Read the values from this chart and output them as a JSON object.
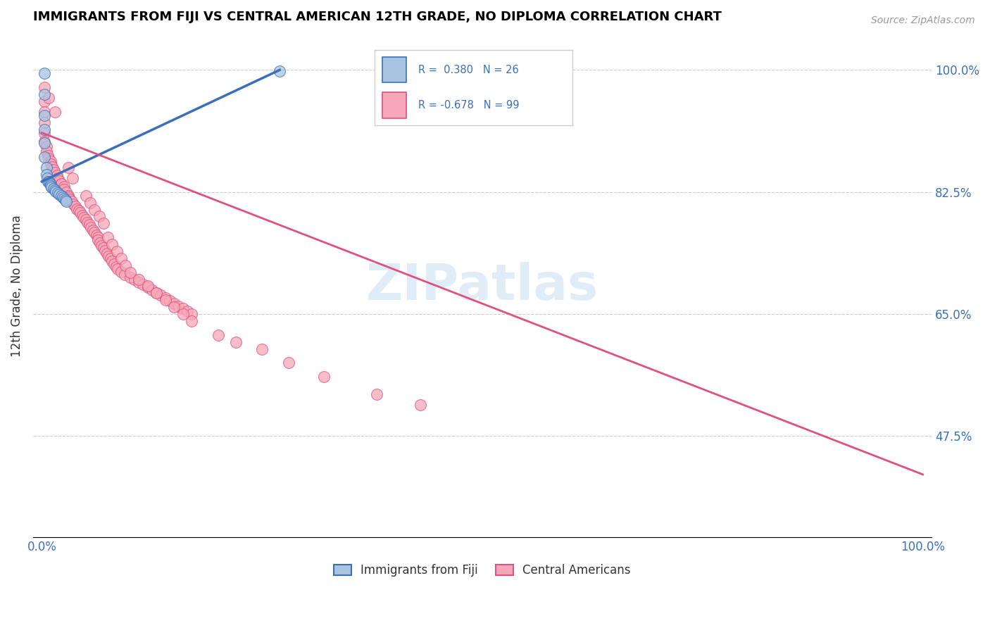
{
  "title": "IMMIGRANTS FROM FIJI VS CENTRAL AMERICAN 12TH GRADE, NO DIPLOMA CORRELATION CHART",
  "source_text": "Source: ZipAtlas.com",
  "ylabel": "12th Grade, No Diploma",
  "x_tick_labels": [
    "0.0%",
    "100.0%"
  ],
  "y_tick_labels": [
    "100.0%",
    "82.5%",
    "65.0%",
    "47.5%"
  ],
  "y_tick_positions": [
    1.0,
    0.825,
    0.65,
    0.475
  ],
  "fiji_R": 0.38,
  "fiji_N": 26,
  "central_R": -0.678,
  "central_N": 99,
  "fiji_color": "#a8c4e0",
  "fiji_line_color": "#3a6fba",
  "central_color": "#f5a8b8",
  "central_line_color": "#e05080",
  "watermark": "ZIPatlas",
  "xlim": [
    0.0,
    1.0
  ],
  "ylim": [
    0.33,
    1.05
  ],
  "fiji_line_x": [
    0.0,
    0.27
  ],
  "fiji_line_y": [
    0.84,
    1.0
  ],
  "central_line_x": [
    0.0,
    1.0
  ],
  "central_line_y": [
    0.91,
    0.42
  ],
  "fiji_points": [
    [
      0.003,
      0.995
    ],
    [
      0.003,
      0.965
    ],
    [
      0.003,
      0.935
    ],
    [
      0.003,
      0.915
    ],
    [
      0.003,
      0.895
    ],
    [
      0.003,
      0.875
    ],
    [
      0.005,
      0.86
    ],
    [
      0.005,
      0.85
    ],
    [
      0.006,
      0.845
    ],
    [
      0.007,
      0.84
    ],
    [
      0.008,
      0.84
    ],
    [
      0.009,
      0.838
    ],
    [
      0.01,
      0.836
    ],
    [
      0.01,
      0.834
    ],
    [
      0.011,
      0.832
    ],
    [
      0.013,
      0.83
    ],
    [
      0.015,
      0.828
    ],
    [
      0.016,
      0.826
    ],
    [
      0.018,
      0.824
    ],
    [
      0.02,
      0.822
    ],
    [
      0.022,
      0.82
    ],
    [
      0.024,
      0.818
    ],
    [
      0.025,
      0.816
    ],
    [
      0.027,
      0.814
    ],
    [
      0.028,
      0.812
    ],
    [
      0.27,
      0.998
    ]
  ],
  "central_points": [
    [
      0.003,
      0.975
    ],
    [
      0.003,
      0.955
    ],
    [
      0.003,
      0.94
    ],
    [
      0.003,
      0.925
    ],
    [
      0.003,
      0.91
    ],
    [
      0.003,
      0.897
    ],
    [
      0.005,
      0.89
    ],
    [
      0.005,
      0.883
    ],
    [
      0.007,
      0.877
    ],
    [
      0.008,
      0.873
    ],
    [
      0.01,
      0.869
    ],
    [
      0.01,
      0.865
    ],
    [
      0.012,
      0.861
    ],
    [
      0.013,
      0.857
    ],
    [
      0.015,
      0.853
    ],
    [
      0.017,
      0.849
    ],
    [
      0.018,
      0.845
    ],
    [
      0.02,
      0.841
    ],
    [
      0.022,
      0.837
    ],
    [
      0.022,
      0.837
    ],
    [
      0.025,
      0.833
    ],
    [
      0.025,
      0.829
    ],
    [
      0.028,
      0.825
    ],
    [
      0.03,
      0.82
    ],
    [
      0.03,
      0.818
    ],
    [
      0.032,
      0.815
    ],
    [
      0.034,
      0.812
    ],
    [
      0.036,
      0.808
    ],
    [
      0.038,
      0.805
    ],
    [
      0.04,
      0.801
    ],
    [
      0.042,
      0.798
    ],
    [
      0.044,
      0.795
    ],
    [
      0.046,
      0.791
    ],
    [
      0.048,
      0.788
    ],
    [
      0.05,
      0.785
    ],
    [
      0.052,
      0.781
    ],
    [
      0.054,
      0.778
    ],
    [
      0.056,
      0.774
    ],
    [
      0.058,
      0.77
    ],
    [
      0.06,
      0.767
    ],
    [
      0.062,
      0.763
    ],
    [
      0.064,
      0.76
    ],
    [
      0.064,
      0.756
    ],
    [
      0.066,
      0.752
    ],
    [
      0.068,
      0.748
    ],
    [
      0.07,
      0.745
    ],
    [
      0.072,
      0.741
    ],
    [
      0.074,
      0.737
    ],
    [
      0.076,
      0.733
    ],
    [
      0.078,
      0.73
    ],
    [
      0.08,
      0.726
    ],
    [
      0.082,
      0.722
    ],
    [
      0.084,
      0.718
    ],
    [
      0.086,
      0.715
    ],
    [
      0.09,
      0.711
    ],
    [
      0.094,
      0.707
    ],
    [
      0.1,
      0.703
    ],
    [
      0.105,
      0.7
    ],
    [
      0.11,
      0.696
    ],
    [
      0.115,
      0.692
    ],
    [
      0.12,
      0.688
    ],
    [
      0.125,
      0.684
    ],
    [
      0.13,
      0.68
    ],
    [
      0.135,
      0.677
    ],
    [
      0.14,
      0.673
    ],
    [
      0.145,
      0.669
    ],
    [
      0.15,
      0.665
    ],
    [
      0.155,
      0.661
    ],
    [
      0.16,
      0.658
    ],
    [
      0.165,
      0.654
    ],
    [
      0.17,
      0.65
    ],
    [
      0.008,
      0.96
    ],
    [
      0.015,
      0.94
    ],
    [
      0.03,
      0.86
    ],
    [
      0.035,
      0.845
    ],
    [
      0.05,
      0.82
    ],
    [
      0.055,
      0.81
    ],
    [
      0.06,
      0.8
    ],
    [
      0.065,
      0.79
    ],
    [
      0.07,
      0.78
    ],
    [
      0.075,
      0.76
    ],
    [
      0.08,
      0.75
    ],
    [
      0.085,
      0.74
    ],
    [
      0.09,
      0.73
    ],
    [
      0.095,
      0.72
    ],
    [
      0.1,
      0.71
    ],
    [
      0.11,
      0.7
    ],
    [
      0.12,
      0.69
    ],
    [
      0.13,
      0.68
    ],
    [
      0.14,
      0.67
    ],
    [
      0.15,
      0.66
    ],
    [
      0.16,
      0.65
    ],
    [
      0.17,
      0.64
    ],
    [
      0.2,
      0.62
    ],
    [
      0.22,
      0.61
    ],
    [
      0.25,
      0.6
    ],
    [
      0.28,
      0.58
    ],
    [
      0.32,
      0.56
    ],
    [
      0.38,
      0.535
    ],
    [
      0.43,
      0.52
    ]
  ]
}
